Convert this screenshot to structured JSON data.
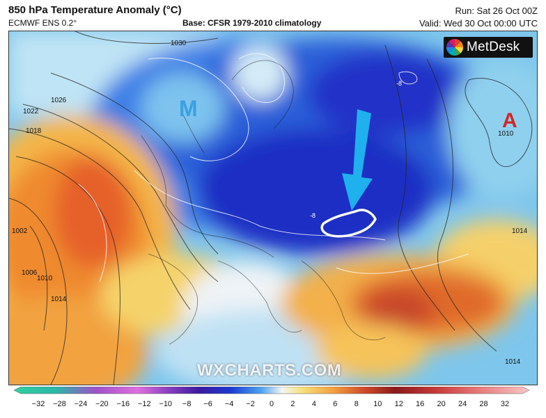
{
  "header": {
    "title": "850 hPa Temperature Anomaly (°C)",
    "model": "ECMWF ENS 0.2°",
    "base": "Base: CFSR 1979-2010 climatology",
    "run": "Run: Sat 26 Oct 00Z",
    "valid": "Valid: Wed 30 Oct 00:00 UTC"
  },
  "logo": {
    "text": "MetDesk"
  },
  "watermark": "WXCHARTS.COM",
  "map_labels": {
    "low_letter": "M",
    "high_letter": "A",
    "contours": [
      "1030",
      "1026",
      "1022",
      "1018",
      "1010",
      "1002",
      "1006",
      "1010",
      "1014",
      "1014",
      "1014"
    ],
    "anomaly_labels": [
      "-8",
      "-8"
    ]
  },
  "colors": {
    "deep_blue": "#1a23b8",
    "blue": "#2f6fe0",
    "light_blue": "#8fd0ee",
    "neutral": "#f4f4f4",
    "yellow": "#f5d65e",
    "orange": "#f29a3a",
    "red": "#d8512a",
    "arrow": "#1fb0ee",
    "low_label": "#3aa0e0",
    "high_label": "#d0282a"
  },
  "colorbar": {
    "ticks": [
      "−32",
      "−28",
      "−24",
      "−20",
      "−16",
      "−12",
      "−10",
      "−8",
      "−6",
      "−4",
      "−2",
      "0",
      "2",
      "4",
      "6",
      "8",
      "10",
      "12",
      "16",
      "20",
      "24",
      "28",
      "32"
    ]
  }
}
